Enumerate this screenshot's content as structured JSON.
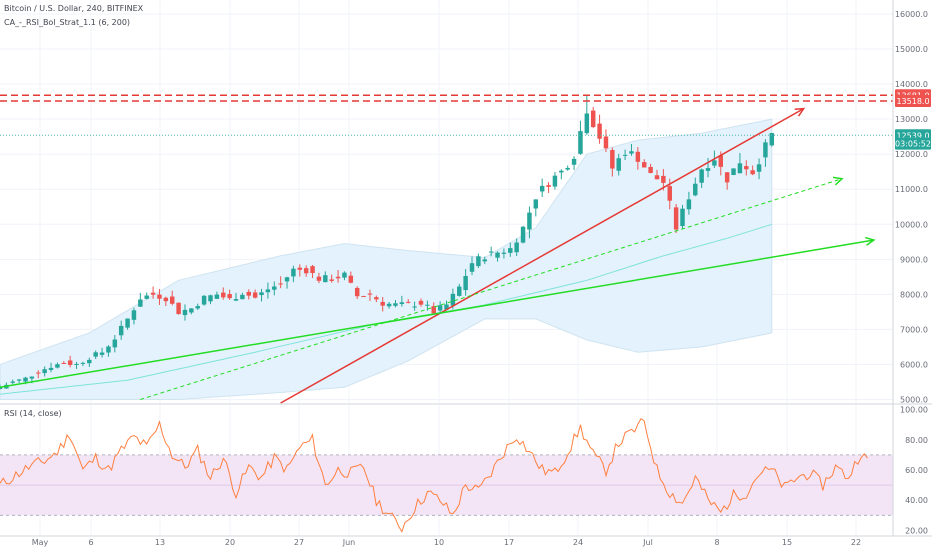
{
  "header": {
    "symbol": "Bitcoin / U.S. Dollar, 240, BITFINEX",
    "indicator": "CA_-_RSI_Bol_Strat_1.1 (6, 200)",
    "rsi_label": "RSI (14, close)"
  },
  "colors": {
    "up": "#26a69a",
    "down": "#ef5350",
    "red_line": "#e53935",
    "green_line": "#22dd22",
    "band_fill": "#e3f2fd",
    "band_line": "#cfe3f0",
    "ma_line": "#7fe3d8",
    "rsi_line": "#ff7f3f",
    "rsi_band": "#f3e5f5",
    "price_line": "#4db6ac"
  },
  "price_axis": {
    "ticks": [
      "16000.0",
      "15000.0",
      "14000.0",
      "13000.0",
      "12000.0",
      "11000.0",
      "10000.0",
      "9000.0",
      "8000.0",
      "7000.0",
      "6000.0",
      "5000.0"
    ],
    "badges": [
      {
        "label": "13681.0",
        "value": 13681,
        "color": "#ef5350"
      },
      {
        "label": "13518.0",
        "value": 13518,
        "color": "#ef5350"
      },
      {
        "label": "12539.0",
        "value": 12539,
        "color": "#26a69a"
      },
      {
        "label": "03:05:52",
        "value": 12300,
        "color": "#26a69a"
      }
    ]
  },
  "rsi_axis": {
    "ticks": [
      "100.00",
      "80.00",
      "60.00",
      "40.00",
      "20.00"
    ]
  },
  "time_axis": {
    "labels": [
      "May",
      "6",
      "13",
      "20",
      "27",
      "Jun",
      "10",
      "17",
      "24",
      "Jul",
      "8",
      "15",
      "22"
    ]
  },
  "chart_data": [
    {
      "type": "candlestick",
      "title": "Bitcoin / U.S. Dollar, 240, BITFINEX",
      "ylim": [
        4900,
        16400
      ],
      "x_labels": [
        "May",
        "6",
        "13",
        "20",
        "27",
        "Jun",
        "10",
        "17",
        "24",
        "Jul",
        "8",
        "15",
        "22"
      ],
      "close_path": [
        [
          0,
          5350
        ],
        [
          2,
          5500
        ],
        [
          4,
          5600
        ],
        [
          6,
          5800
        ],
        [
          8,
          5950
        ],
        [
          10,
          6050
        ],
        [
          12,
          6000
        ],
        [
          14,
          6200
        ],
        [
          16,
          6350
        ],
        [
          18,
          6750
        ],
        [
          20,
          7300
        ],
        [
          22,
          7900
        ],
        [
          24,
          8000
        ],
        [
          26,
          7900
        ],
        [
          28,
          7500
        ],
        [
          30,
          7600
        ],
        [
          32,
          7900
        ],
        [
          34,
          8000
        ],
        [
          36,
          7850
        ],
        [
          38,
          8050
        ],
        [
          40,
          7900
        ],
        [
          42,
          8150
        ],
        [
          44,
          8300
        ],
        [
          46,
          8700
        ],
        [
          48,
          8700
        ],
        [
          50,
          8450
        ],
        [
          52,
          8450
        ],
        [
          54,
          8550
        ],
        [
          56,
          7950
        ],
        [
          58,
          8000
        ],
        [
          60,
          7750
        ],
        [
          62,
          7700
        ],
        [
          64,
          7700
        ],
        [
          66,
          7750
        ],
        [
          68,
          7500
        ],
        [
          70,
          7700
        ],
        [
          72,
          8200
        ],
        [
          74,
          8900
        ],
        [
          76,
          9100
        ],
        [
          78,
          9200
        ],
        [
          80,
          9300
        ],
        [
          82,
          9900
        ],
        [
          84,
          10800
        ],
        [
          86,
          11200
        ],
        [
          88,
          11500
        ],
        [
          90,
          12000
        ],
        [
          92,
          13300
        ],
        [
          94,
          12500
        ],
        [
          96,
          11600
        ],
        [
          98,
          12100
        ],
        [
          100,
          11900
        ],
        [
          102,
          11400
        ],
        [
          104,
          11200
        ],
        [
          106,
          9900
        ],
        [
          108,
          10800
        ],
        [
          110,
          11600
        ],
        [
          112,
          11900
        ],
        [
          114,
          11300
        ],
        [
          116,
          11800
        ],
        [
          118,
          11500
        ],
        [
          120,
          12200
        ],
        [
          121,
          12540
        ]
      ],
      "bollinger_upper": [
        [
          0,
          6000
        ],
        [
          14,
          6900
        ],
        [
          28,
          8400
        ],
        [
          44,
          9100
        ],
        [
          54,
          9450
        ],
        [
          64,
          9250
        ],
        [
          76,
          9050
        ],
        [
          84,
          9900
        ],
        [
          92,
          12000
        ],
        [
          100,
          12400
        ],
        [
          110,
          12600
        ],
        [
          121,
          13000
        ]
      ],
      "bollinger_lower": [
        [
          0,
          5000
        ],
        [
          14,
          5000
        ],
        [
          28,
          5000
        ],
        [
          44,
          5200
        ],
        [
          54,
          5350
        ],
        [
          64,
          6100
        ],
        [
          76,
          7300
        ],
        [
          84,
          7300
        ],
        [
          92,
          6700
        ],
        [
          100,
          6350
        ],
        [
          110,
          6500
        ],
        [
          121,
          6900
        ]
      ],
      "moving_average": [
        [
          0,
          5150
        ],
        [
          20,
          5550
        ],
        [
          40,
          6350
        ],
        [
          60,
          7200
        ],
        [
          76,
          7700
        ],
        [
          92,
          8400
        ],
        [
          104,
          9100
        ],
        [
          114,
          9600
        ],
        [
          121,
          10000
        ]
      ],
      "red_trendline": [
        [
          44,
          4900
        ],
        [
          126,
          13300
        ]
      ],
      "green_trendline": [
        [
          0,
          5350
        ],
        [
          137,
          9550
        ]
      ],
      "green_dashed_trendline": [
        [
          22,
          5000
        ],
        [
          132,
          11300
        ]
      ],
      "horizontal_levels": [
        13681,
        13518
      ],
      "last_price": 12539
    },
    {
      "type": "line",
      "title": "RSI (14, close)",
      "ylim": [
        17,
        103
      ],
      "band": [
        30,
        70
      ],
      "path": [
        [
          0,
          50
        ],
        [
          3,
          58
        ],
        [
          5,
          63
        ],
        [
          7,
          66
        ],
        [
          9,
          72
        ],
        [
          11,
          84
        ],
        [
          13,
          60
        ],
        [
          15,
          68
        ],
        [
          17,
          60
        ],
        [
          19,
          73
        ],
        [
          21,
          82
        ],
        [
          23,
          75
        ],
        [
          25,
          90
        ],
        [
          27,
          70
        ],
        [
          29,
          62
        ],
        [
          31,
          73
        ],
        [
          33,
          55
        ],
        [
          35,
          68
        ],
        [
          37,
          45
        ],
        [
          39,
          62
        ],
        [
          41,
          55
        ],
        [
          43,
          68
        ],
        [
          45,
          60
        ],
        [
          47,
          75
        ],
        [
          49,
          80
        ],
        [
          51,
          50
        ],
        [
          53,
          60
        ],
        [
          55,
          58
        ],
        [
          57,
          62
        ],
        [
          59,
          40
        ],
        [
          61,
          30
        ],
        [
          63,
          22
        ],
        [
          65,
          35
        ],
        [
          67,
          45
        ],
        [
          69,
          40
        ],
        [
          71,
          30
        ],
        [
          73,
          50
        ],
        [
          75,
          46
        ],
        [
          77,
          58
        ],
        [
          79,
          72
        ],
        [
          81,
          83
        ],
        [
          83,
          72
        ],
        [
          85,
          60
        ],
        [
          87,
          58
        ],
        [
          89,
          72
        ],
        [
          91,
          88
        ],
        [
          93,
          70
        ],
        [
          95,
          60
        ],
        [
          97,
          78
        ],
        [
          99,
          85
        ],
        [
          101,
          92
        ],
        [
          103,
          60
        ],
        [
          105,
          45
        ],
        [
          107,
          38
        ],
        [
          109,
          55
        ],
        [
          111,
          40
        ],
        [
          113,
          32
        ],
        [
          115,
          43
        ],
        [
          117,
          45
        ],
        [
          119,
          58
        ],
        [
          121,
          60
        ],
        [
          123,
          48
        ],
        [
          125,
          55
        ],
        [
          127,
          58
        ],
        [
          129,
          50
        ],
        [
          131,
          62
        ],
        [
          133,
          55
        ],
        [
          135,
          72
        ],
        [
          136,
          65
        ]
      ]
    }
  ]
}
